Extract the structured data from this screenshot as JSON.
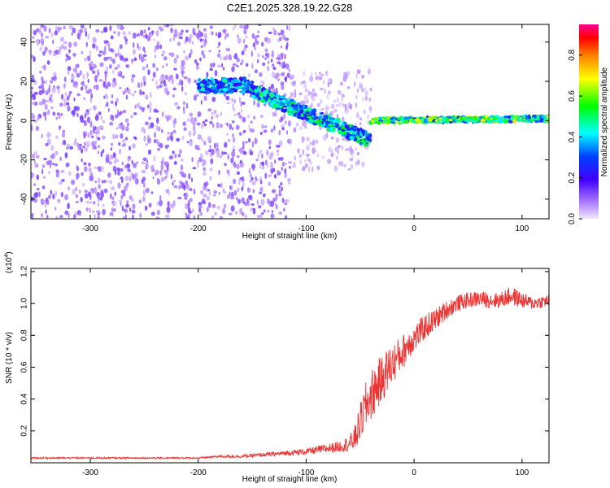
{
  "figure_title": "C2E1.2025.328.19.22.G28",
  "chart_data": [
    {
      "type": "heatmap",
      "xlabel": "Height of straight line (km)",
      "ylabel": "Frequency (Hz)",
      "xlim": [
        -355,
        125
      ],
      "ylim": [
        -50,
        49
      ],
      "x_ticks": [
        -300,
        -200,
        -100,
        0,
        100
      ],
      "y_ticks": [
        -40,
        -20,
        0,
        20,
        40
      ],
      "colorbar": {
        "label": "Normalized spectral amplitude",
        "range": [
          0.0,
          0.95
        ],
        "ticks": [
          0.0,
          0.2,
          0.4,
          0.6,
          0.8
        ],
        "colormap": "rainbow",
        "stops": [
          "#e0d0ff",
          "#4000ff",
          "#0000ff",
          "#00ffff",
          "#00ff00",
          "#ffff00",
          "#ff8000",
          "#ff0000",
          "#ff0080"
        ]
      },
      "features": [
        {
          "name": "broadband noise",
          "x_range": [
            -355,
            -115
          ],
          "freq_range": [
            -50,
            49
          ],
          "amplitude": 0.1
        },
        {
          "name": "diffuse noise",
          "x_range": [
            -115,
            -40
          ],
          "freq_range": [
            -25,
            25
          ],
          "amplitude": 0.05
        },
        {
          "name": "line segment",
          "x_range": [
            -200,
            -150
          ],
          "freq_center": [
            18,
            18
          ],
          "amplitude": 0.3
        },
        {
          "name": "descending line",
          "x_range": [
            -150,
            -40
          ],
          "freq_center": [
            15,
            -10
          ],
          "amplitude": 0.35
        },
        {
          "name": "carrier line",
          "x_range": [
            -40,
            125
          ],
          "freq_center": [
            0,
            1
          ],
          "amplitude": 0.45
        }
      ]
    },
    {
      "type": "line",
      "xlabel": "Height of straight line (km)",
      "ylabel": "SNR (10 * v/v)",
      "y_multiplier": "(x10",
      "y_exponent": "4",
      "xlim": [
        -355,
        125
      ],
      "ylim": [
        0.0,
        1.22
      ],
      "x_ticks": [
        -300,
        -200,
        -100,
        0,
        100
      ],
      "y_ticks": [
        0.2,
        0.4,
        0.6,
        0.8,
        1.0,
        1.2
      ],
      "series": [
        {
          "color": "#ee3333",
          "x": [
            -355,
            -330,
            -300,
            -270,
            -240,
            -200,
            -180,
            -160,
            -140,
            -120,
            -100,
            -90,
            -80,
            -70,
            -60,
            -55,
            -50,
            -45,
            -40,
            -35,
            -30,
            -25,
            -20,
            -15,
            -10,
            -5,
            0,
            10,
            20,
            30,
            40,
            50,
            60,
            70,
            80,
            90,
            100,
            110,
            125
          ],
          "y": [
            0.03,
            0.03,
            0.03,
            0.03,
            0.03,
            0.03,
            0.04,
            0.04,
            0.05,
            0.06,
            0.07,
            0.08,
            0.09,
            0.1,
            0.12,
            0.15,
            0.25,
            0.35,
            0.42,
            0.48,
            0.52,
            0.58,
            0.62,
            0.66,
            0.7,
            0.75,
            0.78,
            0.85,
            0.9,
            0.96,
            1.0,
            1.02,
            1.03,
            1.02,
            1.02,
            1.05,
            1.02,
            1.0,
            1.02
          ],
          "noise": [
            0.005,
            0.005,
            0.005,
            0.005,
            0.005,
            0.005,
            0.008,
            0.01,
            0.012,
            0.015,
            0.02,
            0.025,
            0.03,
            0.035,
            0.05,
            0.08,
            0.12,
            0.15,
            0.16,
            0.16,
            0.15,
            0.14,
            0.13,
            0.12,
            0.11,
            0.1,
            0.09,
            0.08,
            0.07,
            0.06,
            0.05,
            0.05,
            0.05,
            0.05,
            0.05,
            0.06,
            0.05,
            0.04,
            0.04
          ]
        }
      ]
    }
  ]
}
